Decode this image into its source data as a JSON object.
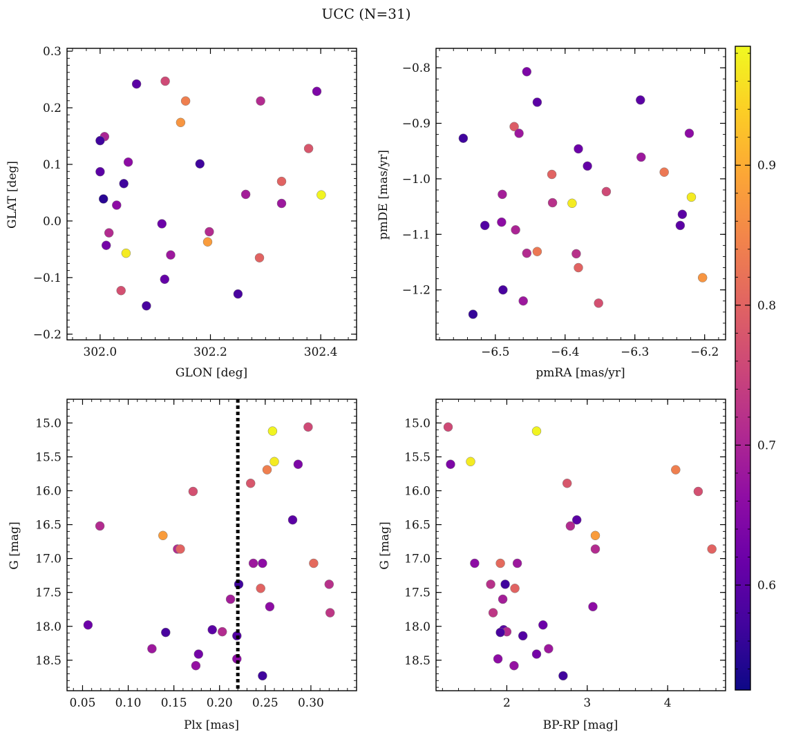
{
  "figure": {
    "title": "UCC (N=31)"
  },
  "colorbar": {
    "range": [
      0.525,
      0.985
    ],
    "colormap": "plasma",
    "ticks": [
      0.6,
      0.7,
      0.8,
      0.9
    ]
  },
  "chart_data": [
    {
      "id": "glon_glat",
      "type": "scatter",
      "xlabel": "GLON [deg]",
      "ylabel": "GLAT [deg]",
      "xlim": [
        301.94,
        302.465
      ],
      "ylim": [
        -0.21,
        0.305
      ],
      "xticks": [
        302.0,
        302.2,
        302.4
      ],
      "xtick_labels": [
        "302.0",
        "302.2",
        "302.4"
      ],
      "xminor_step": 0.025,
      "yticks": [
        -0.2,
        -0.1,
        0.0,
        0.1,
        0.2,
        0.3
      ],
      "ytick_labels": [
        "−0.2",
        "−0.1",
        "0.0",
        "0.1",
        "0.2",
        "0.3"
      ],
      "yminor_step": 0.0125,
      "points": [
        {
          "x": 302.066,
          "y": 0.242,
          "c": 0.6
        },
        {
          "x": 302.118,
          "y": 0.247,
          "c": 0.76
        },
        {
          "x": 302.393,
          "y": 0.229,
          "c": 0.64
        },
        {
          "x": 302.155,
          "y": 0.212,
          "c": 0.84
        },
        {
          "x": 302.291,
          "y": 0.212,
          "c": 0.71
        },
        {
          "x": 302.146,
          "y": 0.174,
          "c": 0.87
        },
        {
          "x": 302.008,
          "y": 0.149,
          "c": 0.7
        },
        {
          "x": 302.0,
          "y": 0.142,
          "c": 0.57
        },
        {
          "x": 302.378,
          "y": 0.128,
          "c": 0.78
        },
        {
          "x": 302.051,
          "y": 0.104,
          "c": 0.66
        },
        {
          "x": 302.181,
          "y": 0.101,
          "c": 0.57
        },
        {
          "x": 302.0,
          "y": 0.087,
          "c": 0.6
        },
        {
          "x": 302.329,
          "y": 0.07,
          "c": 0.8
        },
        {
          "x": 302.043,
          "y": 0.066,
          "c": 0.57
        },
        {
          "x": 302.264,
          "y": 0.047,
          "c": 0.69
        },
        {
          "x": 302.401,
          "y": 0.046,
          "c": 0.98
        },
        {
          "x": 302.006,
          "y": 0.039,
          "c": 0.55
        },
        {
          "x": 302.329,
          "y": 0.031,
          "c": 0.68
        },
        {
          "x": 302.03,
          "y": 0.028,
          "c": 0.66
        },
        {
          "x": 302.112,
          "y": -0.005,
          "c": 0.62
        },
        {
          "x": 302.198,
          "y": -0.019,
          "c": 0.71
        },
        {
          "x": 302.016,
          "y": -0.021,
          "c": 0.71
        },
        {
          "x": 302.195,
          "y": -0.037,
          "c": 0.88
        },
        {
          "x": 302.011,
          "y": -0.043,
          "c": 0.63
        },
        {
          "x": 302.047,
          "y": -0.057,
          "c": 0.97
        },
        {
          "x": 302.128,
          "y": -0.06,
          "c": 0.68
        },
        {
          "x": 302.289,
          "y": -0.065,
          "c": 0.8
        },
        {
          "x": 302.117,
          "y": -0.103,
          "c": 0.61
        },
        {
          "x": 302.038,
          "y": -0.123,
          "c": 0.77
        },
        {
          "x": 302.25,
          "y": -0.129,
          "c": 0.58
        },
        {
          "x": 302.084,
          "y": -0.15,
          "c": 0.58
        }
      ]
    },
    {
      "id": "pmra_pmde",
      "type": "scatter",
      "xlabel": "pmRA [mas/yr]",
      "ylabel": "pmDE [mas/yr]",
      "xlim": [
        -6.585,
        -6.17
      ],
      "ylim": [
        -1.29,
        -0.765
      ],
      "xticks": [
        -6.5,
        -6.4,
        -6.3,
        -6.2
      ],
      "xtick_labels": [
        "−6.5",
        "−6.4",
        "−6.3",
        "−6.2"
      ],
      "xminor_step": 0.02,
      "yticks": [
        -1.2,
        -1.1,
        -1.0,
        -0.9,
        -0.8
      ],
      "ytick_labels": [
        "−1.2",
        "−1.1",
        "−1.0",
        "−0.9",
        "−0.8"
      ],
      "yminor_step": 0.02,
      "points": [
        {
          "x": -6.455,
          "y": -0.807,
          "c": 0.64
        },
        {
          "x": -6.44,
          "y": -0.862,
          "c": 0.6
        },
        {
          "x": -6.292,
          "y": -0.858,
          "c": 0.6
        },
        {
          "x": -6.473,
          "y": -0.906,
          "c": 0.79
        },
        {
          "x": -6.466,
          "y": -0.918,
          "c": 0.68
        },
        {
          "x": -6.222,
          "y": -0.918,
          "c": 0.66
        },
        {
          "x": -6.546,
          "y": -0.927,
          "c": 0.57
        },
        {
          "x": -6.381,
          "y": -0.946,
          "c": 0.62
        },
        {
          "x": -6.291,
          "y": -0.961,
          "c": 0.68
        },
        {
          "x": -6.368,
          "y": -0.977,
          "c": 0.61
        },
        {
          "x": -6.258,
          "y": -0.988,
          "c": 0.83
        },
        {
          "x": -6.419,
          "y": -0.992,
          "c": 0.8
        },
        {
          "x": -6.341,
          "y": -1.023,
          "c": 0.76
        },
        {
          "x": -6.49,
          "y": -1.028,
          "c": 0.69
        },
        {
          "x": -6.219,
          "y": -1.033,
          "c": 0.97
        },
        {
          "x": -6.418,
          "y": -1.043,
          "c": 0.72
        },
        {
          "x": -6.39,
          "y": -1.044,
          "c": 0.97
        },
        {
          "x": -6.232,
          "y": -1.064,
          "c": 0.6
        },
        {
          "x": -6.491,
          "y": -1.078,
          "c": 0.66
        },
        {
          "x": -6.515,
          "y": -1.084,
          "c": 0.59
        },
        {
          "x": -6.235,
          "y": -1.084,
          "c": 0.6
        },
        {
          "x": -6.471,
          "y": -1.092,
          "c": 0.7
        },
        {
          "x": -6.44,
          "y": -1.131,
          "c": 0.83
        },
        {
          "x": -6.455,
          "y": -1.134,
          "c": 0.71
        },
        {
          "x": -6.384,
          "y": -1.135,
          "c": 0.72
        },
        {
          "x": -6.381,
          "y": -1.16,
          "c": 0.8
        },
        {
          "x": -6.203,
          "y": -1.178,
          "c": 0.87
        },
        {
          "x": -6.489,
          "y": -1.2,
          "c": 0.58
        },
        {
          "x": -6.46,
          "y": -1.22,
          "c": 0.68
        },
        {
          "x": -6.352,
          "y": -1.224,
          "c": 0.77
        },
        {
          "x": -6.532,
          "y": -1.244,
          "c": 0.56
        }
      ]
    },
    {
      "id": "plx_g",
      "type": "scatter",
      "xlabel": "Plx [mas]",
      "ylabel": "G [mag]",
      "xlim": [
        0.033,
        0.35
      ],
      "ylim": [
        18.95,
        14.65
      ],
      "y_inverted": true,
      "xticks": [
        0.05,
        0.1,
        0.15,
        0.2,
        0.25,
        0.3
      ],
      "xtick_labels": [
        "0.05",
        "0.10",
        "0.15",
        "0.20",
        "0.25",
        "0.30"
      ],
      "xminor_step": 0.01,
      "yticks": [
        15.0,
        15.5,
        16.0,
        16.5,
        17.0,
        17.5,
        18.0,
        18.5
      ],
      "ytick_labels": [
        "15.0",
        "15.5",
        "16.0",
        "16.5",
        "17.0",
        "17.5",
        "18.0",
        "18.5"
      ],
      "yminor_step": 0.1,
      "vline": {
        "x": 0.22,
        "style": "dotted",
        "color": "#000000"
      },
      "points": [
        {
          "x": 0.297,
          "y": 15.06,
          "c": 0.76
        },
        {
          "x": 0.258,
          "y": 15.12,
          "c": 0.98
        },
        {
          "x": 0.26,
          "y": 15.57,
          "c": 0.97
        },
        {
          "x": 0.286,
          "y": 15.61,
          "c": 0.64
        },
        {
          "x": 0.252,
          "y": 15.69,
          "c": 0.84
        },
        {
          "x": 0.234,
          "y": 15.89,
          "c": 0.78
        },
        {
          "x": 0.171,
          "y": 16.01,
          "c": 0.77
        },
        {
          "x": 0.28,
          "y": 16.43,
          "c": 0.6
        },
        {
          "x": 0.069,
          "y": 16.52,
          "c": 0.71
        },
        {
          "x": 0.138,
          "y": 16.66,
          "c": 0.88
        },
        {
          "x": 0.154,
          "y": 16.86,
          "c": 0.71
        },
        {
          "x": 0.157,
          "y": 16.86,
          "c": 0.8
        },
        {
          "x": 0.237,
          "y": 17.07,
          "c": 0.68
        },
        {
          "x": 0.247,
          "y": 17.07,
          "c": 0.66
        },
        {
          "x": 0.303,
          "y": 17.07,
          "c": 0.81
        },
        {
          "x": 0.221,
          "y": 17.38,
          "c": 0.57
        },
        {
          "x": 0.32,
          "y": 17.38,
          "c": 0.72
        },
        {
          "x": 0.245,
          "y": 17.44,
          "c": 0.8
        },
        {
          "x": 0.212,
          "y": 17.6,
          "c": 0.69
        },
        {
          "x": 0.255,
          "y": 17.71,
          "c": 0.66
        },
        {
          "x": 0.321,
          "y": 17.8,
          "c": 0.73
        },
        {
          "x": 0.056,
          "y": 17.98,
          "c": 0.62
        },
        {
          "x": 0.192,
          "y": 18.05,
          "c": 0.6
        },
        {
          "x": 0.203,
          "y": 18.08,
          "c": 0.71
        },
        {
          "x": 0.141,
          "y": 18.09,
          "c": 0.58
        },
        {
          "x": 0.219,
          "y": 18.14,
          "c": 0.59
        },
        {
          "x": 0.126,
          "y": 18.33,
          "c": 0.68
        },
        {
          "x": 0.177,
          "y": 18.41,
          "c": 0.63
        },
        {
          "x": 0.219,
          "y": 18.48,
          "c": 0.66
        },
        {
          "x": 0.174,
          "y": 18.58,
          "c": 0.67
        },
        {
          "x": 0.247,
          "y": 18.73,
          "c": 0.57
        }
      ]
    },
    {
      "id": "bprp_g",
      "type": "scatter",
      "xlabel": "BP-RP [mag]",
      "ylabel": "G [mag]",
      "xlim": [
        1.12,
        4.72
      ],
      "ylim": [
        18.95,
        14.65
      ],
      "y_inverted": true,
      "xticks": [
        2,
        3,
        4
      ],
      "xtick_labels": [
        "2",
        "3",
        "4"
      ],
      "xminor_step": 0.2,
      "yticks": [
        15.0,
        15.5,
        16.0,
        16.5,
        17.0,
        17.5,
        18.0,
        18.5
      ],
      "ytick_labels": [
        "15.0",
        "15.5",
        "16.0",
        "16.5",
        "17.0",
        "17.5",
        "18.0",
        "18.5"
      ],
      "yminor_step": 0.1,
      "points": [
        {
          "x": 1.27,
          "y": 15.06,
          "c": 0.76
        },
        {
          "x": 2.37,
          "y": 15.12,
          "c": 0.98
        },
        {
          "x": 1.55,
          "y": 15.57,
          "c": 0.97
        },
        {
          "x": 1.3,
          "y": 15.61,
          "c": 0.64
        },
        {
          "x": 4.1,
          "y": 15.69,
          "c": 0.84
        },
        {
          "x": 2.75,
          "y": 15.89,
          "c": 0.78
        },
        {
          "x": 4.38,
          "y": 16.01,
          "c": 0.77
        },
        {
          "x": 2.87,
          "y": 16.43,
          "c": 0.6
        },
        {
          "x": 2.79,
          "y": 16.52,
          "c": 0.71
        },
        {
          "x": 3.1,
          "y": 16.66,
          "c": 0.88
        },
        {
          "x": 3.1,
          "y": 16.86,
          "c": 0.71
        },
        {
          "x": 4.55,
          "y": 16.86,
          "c": 0.8
        },
        {
          "x": 1.6,
          "y": 17.07,
          "c": 0.66
        },
        {
          "x": 1.92,
          "y": 17.07,
          "c": 0.81
        },
        {
          "x": 2.13,
          "y": 17.07,
          "c": 0.68
        },
        {
          "x": 1.8,
          "y": 17.38,
          "c": 0.72
        },
        {
          "x": 1.98,
          "y": 17.38,
          "c": 0.57
        },
        {
          "x": 2.1,
          "y": 17.44,
          "c": 0.8
        },
        {
          "x": 1.95,
          "y": 17.6,
          "c": 0.69
        },
        {
          "x": 3.07,
          "y": 17.71,
          "c": 0.66
        },
        {
          "x": 1.83,
          "y": 17.8,
          "c": 0.73
        },
        {
          "x": 2.45,
          "y": 17.98,
          "c": 0.62
        },
        {
          "x": 1.96,
          "y": 18.05,
          "c": 0.6
        },
        {
          "x": 2.0,
          "y": 18.08,
          "c": 0.71
        },
        {
          "x": 1.92,
          "y": 18.09,
          "c": 0.58
        },
        {
          "x": 2.2,
          "y": 18.14,
          "c": 0.59
        },
        {
          "x": 2.52,
          "y": 18.33,
          "c": 0.68
        },
        {
          "x": 2.37,
          "y": 18.41,
          "c": 0.63
        },
        {
          "x": 1.89,
          "y": 18.48,
          "c": 0.66
        },
        {
          "x": 2.09,
          "y": 18.58,
          "c": 0.67
        },
        {
          "x": 2.7,
          "y": 18.73,
          "c": 0.57
        }
      ]
    }
  ]
}
